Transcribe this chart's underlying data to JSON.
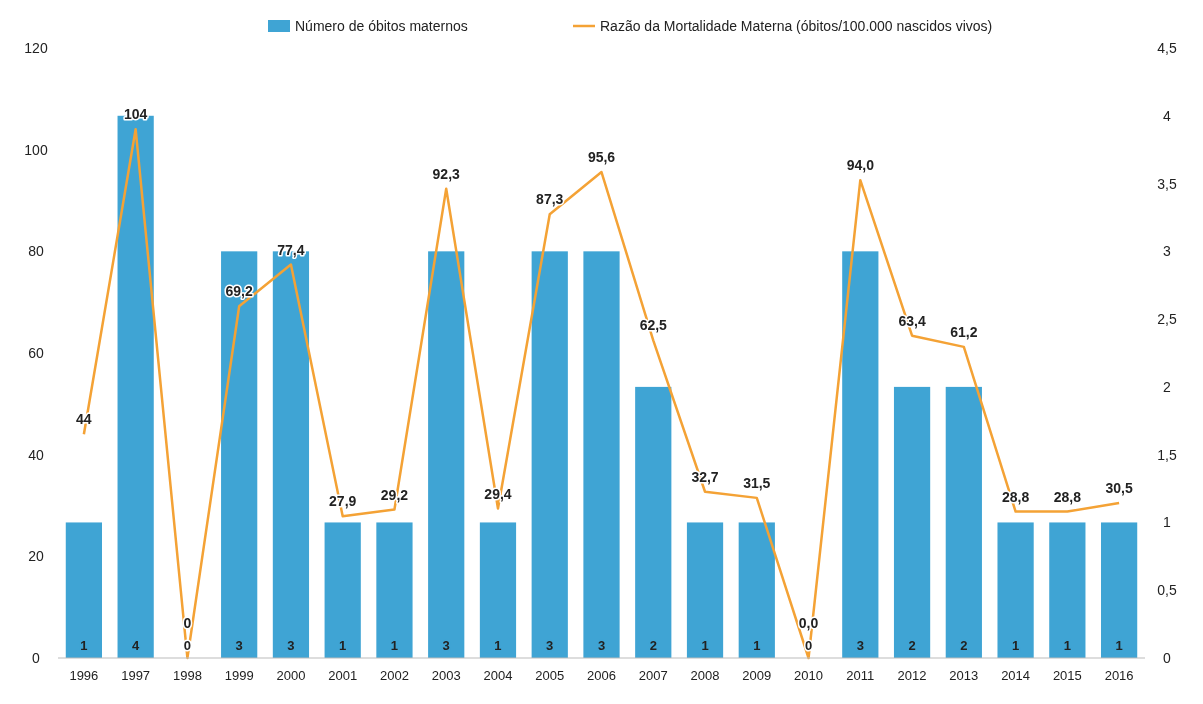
{
  "chart_data": {
    "type": "bar",
    "categories": [
      "1996",
      "1997",
      "1998",
      "1999",
      "2000",
      "2001",
      "2002",
      "2003",
      "2004",
      "2005",
      "2006",
      "2007",
      "2008",
      "2009",
      "2010",
      "2011",
      "2012",
      "2013",
      "2014",
      "2015",
      "2016"
    ],
    "series": [
      {
        "name": "Número de óbitos maternos",
        "axis": "y2",
        "color": "#3fa4d4",
        "values": [
          1,
          4,
          0,
          3,
          3,
          1,
          1,
          3,
          1,
          3,
          3,
          2,
          1,
          1,
          0,
          3,
          2,
          2,
          1,
          1,
          1
        ],
        "value_labels": [
          "1",
          "4",
          "0",
          "3",
          "3",
          "1",
          "1",
          "3",
          "1",
          "3",
          "3",
          "2",
          "1",
          "1",
          "0",
          "3",
          "2",
          "2",
          "1",
          "1",
          "1"
        ]
      },
      {
        "name": "Razão da Mortalidade Materna (óbitos/100.000 nascidos vivos)",
        "type": "line",
        "color": "#f4a235",
        "values": [
          44,
          104,
          0,
          69.2,
          77.4,
          27.9,
          29.2,
          92.3,
          29.4,
          87.3,
          95.6,
          62.5,
          32.7,
          31.5,
          0,
          94,
          63.4,
          61.2,
          28.8,
          28.8,
          30.5
        ],
        "value_labels": [
          "44",
          "104",
          "0",
          "69,2",
          "77,4",
          "27,9",
          "29,2",
          "92,3",
          "29,4",
          "87,3",
          "95,6",
          "62,5",
          "32,7",
          "31,5",
          "0,0",
          "94,0",
          "63,4",
          "61,2",
          "28,8",
          "28,8",
          "30,5"
        ]
      }
    ],
    "ylim": [
      0,
      120
    ],
    "yticks": [
      0,
      20,
      40,
      60,
      80,
      100,
      120
    ],
    "y2lim": [
      0,
      4.5
    ],
    "y2ticks": [
      0,
      {
        "value": 0.5,
        "label": "0,5"
      },
      1,
      {
        "value": 1.5,
        "label": "1,5"
      },
      2,
      {
        "value": 2.5,
        "label": "2,5"
      },
      3,
      {
        "value": 3.5,
        "label": "3,5"
      },
      4,
      {
        "value": 4.5,
        "label": "4,5"
      }
    ],
    "legend": "top",
    "grid": false,
    "marker": "none",
    "line_style": "solid"
  }
}
